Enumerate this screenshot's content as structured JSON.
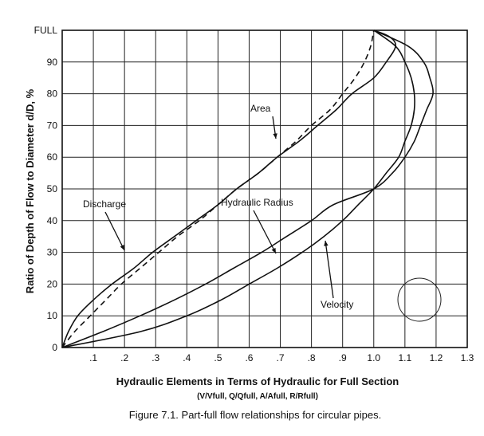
{
  "chart_data": {
    "type": "line",
    "xlabel": "Hydraulic Elements in Terms of Hydraulic for Full Section",
    "xlabel_sub": "(V/Vfull, Q/Qfull, A/Afull, R/Rfull)",
    "ylabel": "Ratio of Depth of Flow to Diameter d/D, %",
    "caption": "Figure 7.1.  Part-full flow relationships for circular pipes.",
    "xlim": [
      0,
      1.3
    ],
    "ylim": [
      0,
      100
    ],
    "x_ticks": [
      ".1",
      ".2",
      ".3",
      ".4",
      ".5",
      ".6",
      ".7",
      ".8",
      ".9",
      "1.0",
      "1.1",
      "1.2",
      "1.3"
    ],
    "y_ticks": [
      "0",
      "10",
      "20",
      "30",
      "40",
      "50",
      "60",
      "70",
      "80",
      "90",
      "FULL"
    ],
    "grid": true,
    "series": [
      {
        "name": "Discharge",
        "style": "solid",
        "points": [
          [
            0,
            0
          ],
          [
            0.02,
            5
          ],
          [
            0.05,
            10
          ],
          [
            0.1,
            15
          ],
          [
            0.16,
            20
          ],
          [
            0.23,
            25
          ],
          [
            0.29,
            30
          ],
          [
            0.36,
            35
          ],
          [
            0.43,
            40
          ],
          [
            0.5,
            45
          ],
          [
            0.56,
            50
          ],
          [
            0.63,
            55
          ],
          [
            0.69,
            60
          ],
          [
            0.76,
            65
          ],
          [
            0.82,
            70
          ],
          [
            0.88,
            75
          ],
          [
            0.93,
            80
          ],
          [
            1.0,
            85
          ],
          [
            1.04,
            90
          ],
          [
            1.07,
            95
          ],
          [
            1.05,
            98
          ],
          [
            1.0,
            100
          ]
        ]
      },
      {
        "name": "Area",
        "style": "dashed",
        "points": [
          [
            0,
            0
          ],
          [
            0.04,
            5
          ],
          [
            0.09,
            10
          ],
          [
            0.14,
            15
          ],
          [
            0.19,
            20
          ],
          [
            0.25,
            25
          ],
          [
            0.31,
            30
          ],
          [
            0.37,
            35
          ],
          [
            0.44,
            40
          ],
          [
            0.5,
            45
          ],
          [
            0.56,
            50
          ],
          [
            0.63,
            55
          ],
          [
            0.69,
            60
          ],
          [
            0.75,
            65
          ],
          [
            0.8,
            70
          ],
          [
            0.86,
            75
          ],
          [
            0.9,
            80
          ],
          [
            0.94,
            85
          ],
          [
            0.97,
            90
          ],
          [
            0.99,
            95
          ],
          [
            1.0,
            100
          ]
        ]
      },
      {
        "name": "Hydraulic Radius",
        "style": "solid",
        "points": [
          [
            0,
            0
          ],
          [
            0.13,
            5
          ],
          [
            0.25,
            10
          ],
          [
            0.36,
            15
          ],
          [
            0.46,
            20
          ],
          [
            0.55,
            25
          ],
          [
            0.64,
            30
          ],
          [
            0.72,
            35
          ],
          [
            0.8,
            40
          ],
          [
            0.87,
            45
          ],
          [
            1.0,
            50
          ],
          [
            1.06,
            55
          ],
          [
            1.1,
            60
          ],
          [
            1.13,
            65
          ],
          [
            1.15,
            70
          ],
          [
            1.17,
            75
          ],
          [
            1.19,
            80
          ],
          [
            1.18,
            85
          ],
          [
            1.16,
            90
          ],
          [
            1.11,
            95
          ],
          [
            1.0,
            100
          ]
        ]
      },
      {
        "name": "Velocity",
        "style": "solid",
        "points": [
          [
            0,
            0
          ],
          [
            0.25,
            5
          ],
          [
            0.4,
            10
          ],
          [
            0.51,
            15
          ],
          [
            0.6,
            20
          ],
          [
            0.69,
            25
          ],
          [
            0.77,
            30
          ],
          [
            0.84,
            35
          ],
          [
            0.9,
            40
          ],
          [
            0.95,
            45
          ],
          [
            1.0,
            50
          ],
          [
            1.04,
            55
          ],
          [
            1.08,
            60
          ],
          [
            1.1,
            65
          ],
          [
            1.12,
            70
          ],
          [
            1.13,
            75
          ],
          [
            1.13,
            80
          ],
          [
            1.12,
            85
          ],
          [
            1.1,
            90
          ],
          [
            1.07,
            95
          ],
          [
            1.0,
            100
          ]
        ]
      }
    ],
    "annotations": [
      {
        "text": "Area",
        "curve": "Area"
      },
      {
        "text": "Discharge",
        "curve": "Discharge"
      },
      {
        "text": "Hydraulic Radius",
        "curve": "Hydraulic Radius"
      },
      {
        "text": "Velocity",
        "curve": "Velocity"
      }
    ]
  }
}
